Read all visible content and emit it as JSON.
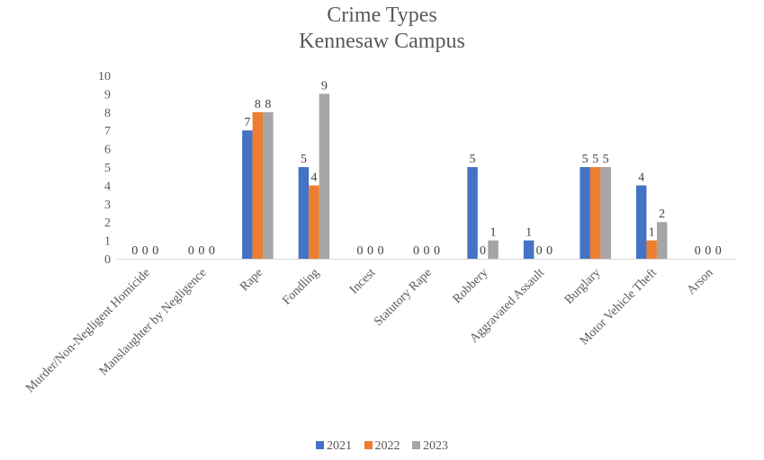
{
  "chart_data": {
    "type": "bar",
    "title": "Crime Types",
    "subtitle": "Kennesaw Campus",
    "categories": [
      "Murder/Non-Negligent Homicide",
      "Manslaughter by Negligence",
      "Rape",
      "Fondling",
      "Incest",
      "Statutory Rape",
      "Robbery",
      "Aggravated Assault",
      "Burglary",
      "Motor Vehicle Theft",
      "Arson"
    ],
    "series": [
      {
        "name": "2021",
        "color": "#4472c4",
        "values": [
          0,
          0,
          7,
          5,
          0,
          0,
          5,
          1,
          5,
          4,
          0
        ]
      },
      {
        "name": "2022",
        "color": "#ed7d31",
        "values": [
          0,
          0,
          8,
          4,
          0,
          0,
          0,
          0,
          5,
          1,
          0
        ]
      },
      {
        "name": "2023",
        "color": "#a5a5a5",
        "values": [
          0,
          0,
          8,
          9,
          0,
          0,
          1,
          0,
          5,
          2,
          0
        ]
      }
    ],
    "yticks": [
      0,
      1,
      2,
      3,
      4,
      5,
      6,
      7,
      8,
      9,
      10
    ],
    "ylim": [
      0,
      10
    ],
    "grid": false,
    "legend": "bottom",
    "data_labels": true
  }
}
